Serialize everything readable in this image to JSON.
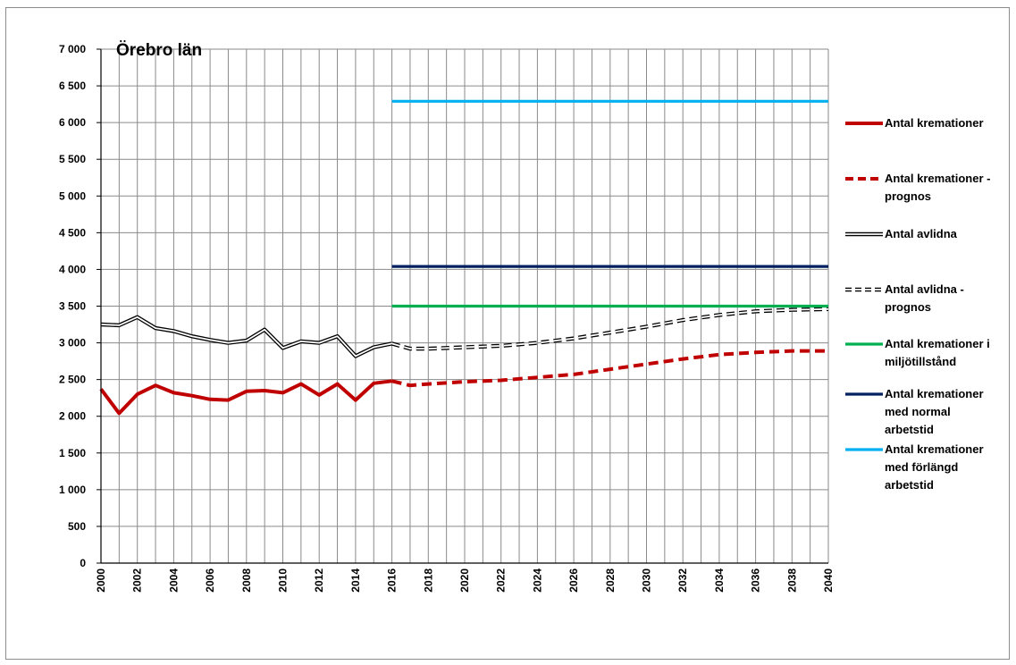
{
  "chart_data": {
    "type": "line",
    "title": "Örebro län",
    "xlabel": "",
    "ylabel": "",
    "xlim": [
      2000,
      2040
    ],
    "ylim": [
      0,
      7000
    ],
    "x_ticks": [
      "2000",
      "2002",
      "2004",
      "2006",
      "2008",
      "2010",
      "2012",
      "2014",
      "2016",
      "2018",
      "2020",
      "2022",
      "2024",
      "2026",
      "2028",
      "2030",
      "2032",
      "2034",
      "2036",
      "2038",
      "2040"
    ],
    "y_ticks": [
      "0",
      "500",
      "1 000",
      "1 500",
      "2 000",
      "2 500",
      "3 000",
      "3 500",
      "4 000",
      "4 500",
      "5 000",
      "5 500",
      "6 000",
      "6 500",
      "7 000"
    ],
    "y_tick_values": [
      0,
      500,
      1000,
      1500,
      2000,
      2500,
      3000,
      3500,
      4000,
      4500,
      5000,
      5500,
      6000,
      6500,
      7000
    ],
    "grid": true,
    "legend_position": "right",
    "series": [
      {
        "name": "Antal kremationer",
        "color": "#c00000",
        "style": "solid",
        "x": [
          2000,
          2001,
          2002,
          2003,
          2004,
          2005,
          2006,
          2007,
          2008,
          2009,
          2010,
          2011,
          2012,
          2013,
          2014,
          2015,
          2016
        ],
        "values": [
          2370,
          2040,
          2300,
          2420,
          2320,
          2280,
          2230,
          2220,
          2340,
          2350,
          2320,
          2440,
          2290,
          2440,
          2220,
          2450,
          2480
        ]
      },
      {
        "name": "Antal kremationer - prognos",
        "color": "#c00000",
        "style": "dashed",
        "x": [
          2016,
          2017,
          2018,
          2020,
          2022,
          2024,
          2026,
          2028,
          2030,
          2032,
          2034,
          2036,
          2038,
          2040
        ],
        "values": [
          2480,
          2420,
          2440,
          2470,
          2490,
          2530,
          2570,
          2640,
          2710,
          2780,
          2840,
          2870,
          2890,
          2890
        ]
      },
      {
        "name": "Antal avlidna",
        "color": "#000000",
        "style": "double",
        "x": [
          2000,
          2001,
          2002,
          2003,
          2004,
          2005,
          2006,
          2007,
          2008,
          2009,
          2010,
          2011,
          2012,
          2013,
          2014,
          2015,
          2016
        ],
        "values": [
          3250,
          3240,
          3350,
          3200,
          3160,
          3090,
          3040,
          3000,
          3030,
          3180,
          2930,
          3020,
          3000,
          3090,
          2820,
          2940,
          2990
        ]
      },
      {
        "name": "Antal avlidna - prognos",
        "color": "#000000",
        "style": "double-dashed",
        "x": [
          2016,
          2017,
          2018,
          2020,
          2022,
          2024,
          2026,
          2028,
          2030,
          2032,
          2034,
          2036,
          2038,
          2040
        ],
        "values": [
          2990,
          2920,
          2920,
          2940,
          2960,
          3000,
          3060,
          3140,
          3220,
          3310,
          3380,
          3430,
          3450,
          3460
        ]
      },
      {
        "name": "Antal kremationer i miljötillstånd",
        "color": "#00b050",
        "style": "solid",
        "x": [
          2016,
          2040
        ],
        "values": [
          3500,
          3500
        ]
      },
      {
        "name": "Antal kremationer med normal arbetstid",
        "color": "#002060",
        "style": "solid",
        "x": [
          2016,
          2040
        ],
        "values": [
          4040,
          4040
        ]
      },
      {
        "name": "Antal kremationer med förlängd arbetstid",
        "color": "#00b0f0",
        "style": "solid",
        "x": [
          2016,
          2040
        ],
        "values": [
          6290,
          6290
        ]
      }
    ],
    "legend": [
      {
        "lines": [
          "Antal kremationer"
        ]
      },
      {
        "lines": [
          "Antal kremationer -",
          "prognos"
        ]
      },
      {
        "lines": [
          "Antal avlidna"
        ]
      },
      {
        "lines": [
          "Antal avlidna -",
          "prognos"
        ]
      },
      {
        "lines": [
          "Antal kremationer i",
          "miljötillstånd"
        ]
      },
      {
        "lines": [
          "Antal kremationer",
          "med normal",
          "arbetstid"
        ]
      },
      {
        "lines": [
          "Antal kremationer",
          "med förlängd",
          "arbetstid"
        ]
      }
    ]
  }
}
